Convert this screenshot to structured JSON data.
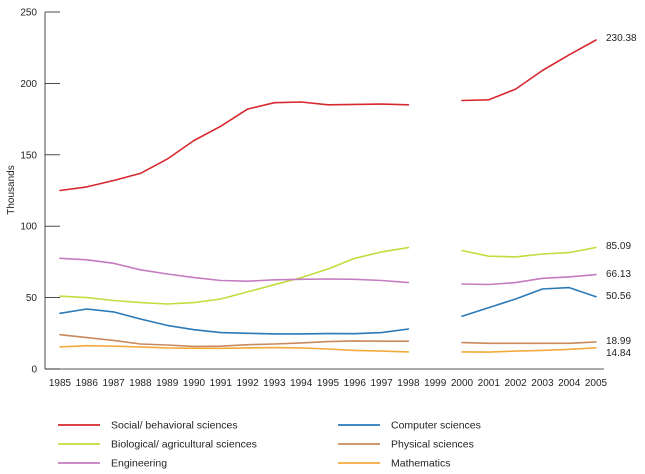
{
  "chart_data": {
    "type": "line",
    "ylabel": "Thousands",
    "ylim": [
      0,
      250
    ],
    "yticks": [
      0,
      50,
      100,
      150,
      200,
      250
    ],
    "x": [
      "1985",
      "1986",
      "1987",
      "1988",
      "1989",
      "1990",
      "1991",
      "1992",
      "1993",
      "1994",
      "1995",
      "1996",
      "1997",
      "1998",
      "1999",
      "2000",
      "2001",
      "2002",
      "2003",
      "2004",
      "2005"
    ],
    "grid": false,
    "legend_position": "bottom",
    "series": [
      {
        "name": "Social/ behavioral sciences",
        "color": "#d7282f",
        "values": [
          125,
          127.5,
          132,
          137,
          147,
          160,
          170,
          182,
          186.5,
          187,
          185,
          185.3,
          185.5,
          185,
          null,
          188,
          188.5,
          196,
          209,
          220,
          230.38
        ],
        "end_label": "230.38"
      },
      {
        "name": "Computer sciences",
        "color": "#2a7ab8",
        "values": [
          39,
          42,
          40,
          35,
          30.5,
          27.5,
          25.5,
          25,
          24.6,
          24.6,
          24.8,
          24.7,
          25.5,
          28,
          null,
          37,
          43,
          49,
          56,
          57,
          50.56
        ],
        "end_label": "50.56"
      },
      {
        "name": "Biological/ agricultural sciences",
        "color": "#c3dc3e",
        "values": [
          51,
          50,
          48,
          46.5,
          45.5,
          46.5,
          49,
          54,
          59,
          64,
          70,
          77.5,
          82,
          85,
          null,
          83,
          79,
          78.5,
          80.5,
          81.5,
          85.09
        ],
        "end_label": "85.09"
      },
      {
        "name": "Physical sciences",
        "color": "#c98a5e",
        "values": [
          24,
          22,
          20,
          17.5,
          16.8,
          15.8,
          16,
          17,
          17.5,
          18.3,
          19.2,
          19.7,
          19.5,
          19.5,
          null,
          18.5,
          18,
          18,
          18,
          18,
          18.99
        ],
        "end_label": "18.99"
      },
      {
        "name": "Engineering",
        "color": "#c57cc0",
        "values": [
          77.5,
          76.5,
          74,
          69.5,
          66.5,
          64,
          62,
          61.5,
          62.5,
          62.8,
          63,
          62.8,
          62,
          60.5,
          null,
          59.5,
          59.2,
          60.5,
          63.5,
          64.5,
          66.13
        ],
        "end_label": "66.13"
      },
      {
        "name": "Mathematics",
        "color": "#f4a93d",
        "values": [
          15.5,
          16.3,
          16,
          15.5,
          14.8,
          14.5,
          14.5,
          14.8,
          15,
          14.8,
          14,
          13,
          12.5,
          12,
          null,
          12,
          11.8,
          12.5,
          13,
          13.8,
          14.84
        ],
        "end_label": "14.84"
      }
    ]
  }
}
